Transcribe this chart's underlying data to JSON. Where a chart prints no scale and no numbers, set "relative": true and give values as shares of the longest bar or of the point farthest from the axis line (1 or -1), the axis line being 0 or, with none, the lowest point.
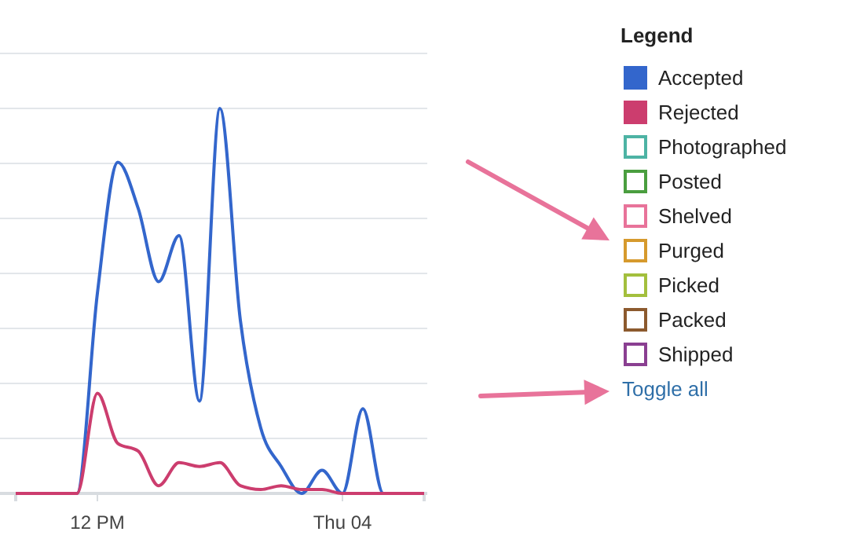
{
  "chart_data": {
    "type": "line",
    "relative": true,
    "grid": "y",
    "legend": "right",
    "legend_title": "Legend",
    "marker": "none",
    "line_style": "solid",
    "categories": [
      null,
      null,
      null,
      null,
      "12 PM",
      null,
      null,
      null,
      null,
      null,
      null,
      null,
      null,
      null,
      null,
      null,
      "Thu 04",
      null,
      null,
      null,
      null
    ],
    "series": [
      {
        "name": "Accepted",
        "color": "#3366cc",
        "values": [
          null,
          null,
          0,
          0,
          0.52,
          0.86,
          0.74,
          0.55,
          0.67,
          0.24,
          1,
          0.45,
          0.17,
          0.07,
          0,
          0.06,
          0,
          0.22,
          0,
          0,
          0
        ]
      },
      {
        "name": "Rejected",
        "color": "#cc3d6e",
        "values": [
          0,
          0,
          0,
          0,
          0.26,
          0.13,
          0.11,
          0.02,
          0.08,
          0.07,
          0.08,
          0.02,
          0.01,
          0.02,
          0.01,
          0.01,
          0,
          0,
          0,
          0,
          0
        ]
      },
      {
        "name": "Photographed",
        "color": "#4db3a4",
        "values": [
          null,
          null,
          null,
          null,
          null,
          null,
          null,
          null,
          null,
          null,
          null,
          null,
          null,
          null,
          null,
          null,
          null,
          null,
          null,
          null,
          null
        ]
      },
      {
        "name": "Posted",
        "color": "#4a9e3f",
        "values": [
          null,
          null,
          null,
          null,
          null,
          null,
          null,
          null,
          null,
          null,
          null,
          null,
          null,
          null,
          null,
          null,
          null,
          null,
          null,
          null,
          null
        ]
      },
      {
        "name": "Shelved",
        "color": "#e8739a",
        "values": [
          null,
          null,
          null,
          null,
          null,
          null,
          null,
          null,
          null,
          null,
          null,
          null,
          null,
          null,
          null,
          null,
          null,
          null,
          null,
          null,
          null
        ]
      },
      {
        "name": "Purged",
        "color": "#d69a2d",
        "values": [
          null,
          null,
          null,
          null,
          null,
          null,
          null,
          null,
          null,
          null,
          null,
          null,
          null,
          null,
          null,
          null,
          null,
          null,
          null,
          null,
          null
        ]
      },
      {
        "name": "Picked",
        "color": "#a3bf3d",
        "values": [
          null,
          null,
          null,
          null,
          null,
          null,
          null,
          null,
          null,
          null,
          null,
          null,
          null,
          null,
          null,
          null,
          null,
          null,
          null,
          null,
          null
        ]
      },
      {
        "name": "Packed",
        "color": "#8c5a2e",
        "values": [
          null,
          null,
          null,
          null,
          null,
          null,
          null,
          null,
          null,
          null,
          null,
          null,
          null,
          null,
          null,
          null,
          null,
          null,
          null,
          null,
          null
        ]
      },
      {
        "name": "Shipped",
        "color": "#8a3f91",
        "values": [
          null,
          null,
          null,
          null,
          null,
          null,
          null,
          null,
          null,
          null,
          null,
          null,
          null,
          null,
          null,
          null,
          null,
          null,
          null,
          null,
          null
        ]
      }
    ],
    "annotations": [
      "Toggle all"
    ]
  }
}
